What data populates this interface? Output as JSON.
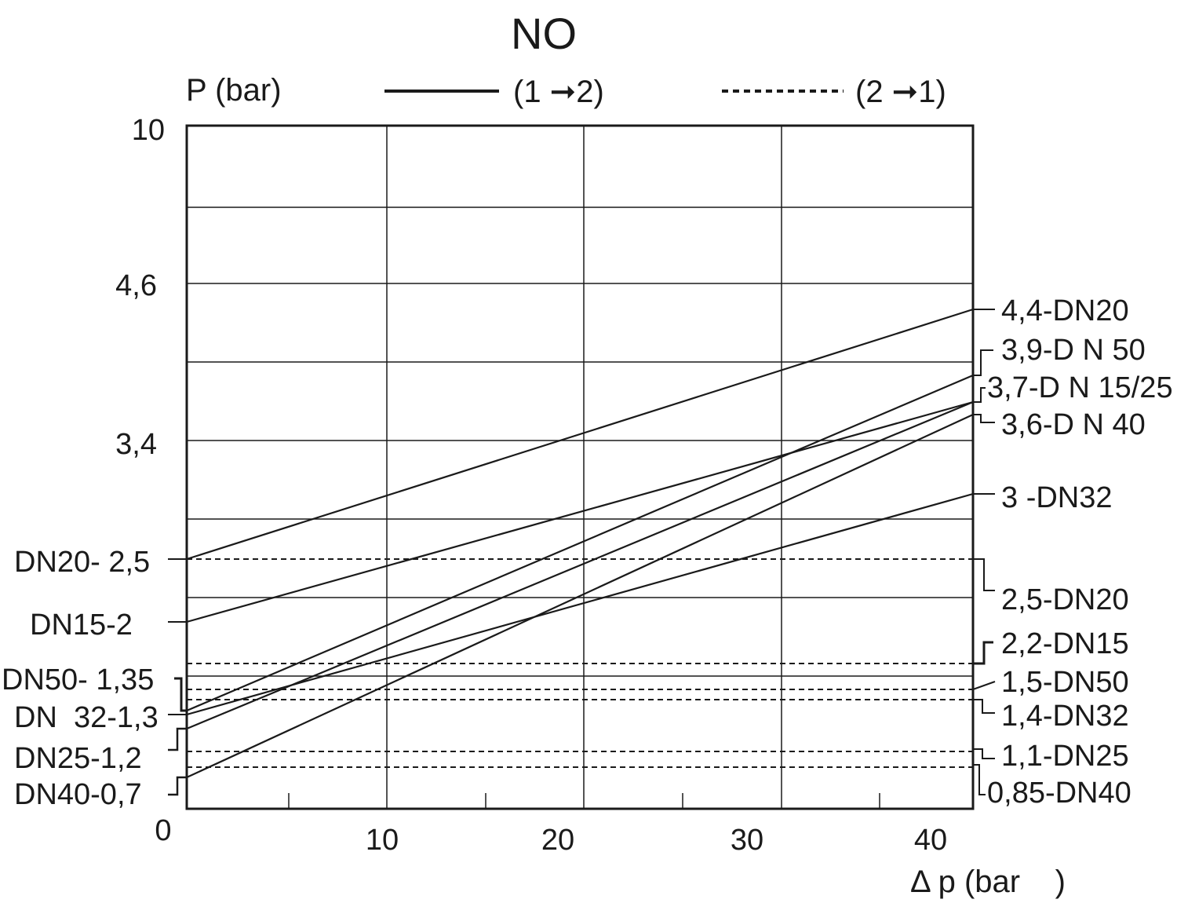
{
  "chart_data": {
    "type": "line",
    "title": "NO",
    "ylabel": "P (bar)",
    "xlabel": "Δ p (bar    )",
    "xlim": [
      0,
      42
    ],
    "x_ticks": [
      {
        "value": 0,
        "label": "0"
      },
      {
        "value": 10,
        "label": "10"
      },
      {
        "value": 20,
        "label": "20"
      },
      {
        "value": 30,
        "label": "30"
      },
      {
        "value": 40,
        "label": "40"
      }
    ],
    "y_ticks": [
      {
        "label": "10"
      },
      {
        "label": "4,6"
      },
      {
        "label": "3,4"
      }
    ],
    "legend": [
      {
        "label": "(1 ➞2)",
        "style": "solid"
      },
      {
        "label": "(2 ➞1)",
        "style": "dashed"
      }
    ],
    "grid": true,
    "series": [
      {
        "name": "DN20",
        "style": "solid",
        "x": [
          0,
          40
        ],
        "y": [
          2.5,
          4.4
        ]
      },
      {
        "name": "DN50",
        "style": "solid",
        "x": [
          0,
          40
        ],
        "y": [
          1.35,
          3.9
        ]
      },
      {
        "name": "DN15",
        "style": "solid",
        "x": [
          0,
          40
        ],
        "y": [
          2.0,
          3.7
        ]
      },
      {
        "name": "DN25",
        "style": "solid",
        "x": [
          0,
          40
        ],
        "y": [
          1.2,
          3.7
        ]
      },
      {
        "name": "DN40",
        "style": "solid",
        "x": [
          0,
          40
        ],
        "y": [
          0.7,
          3.6
        ]
      },
      {
        "name": "DN32",
        "style": "solid",
        "x": [
          0,
          40
        ],
        "y": [
          1.3,
          3.0
        ]
      },
      {
        "name": "DN20",
        "style": "dashed",
        "x": [
          0,
          40
        ],
        "y": [
          2.5,
          2.5
        ]
      },
      {
        "name": "DN15",
        "style": "dashed",
        "x": [
          0,
          40
        ],
        "y": [
          2.2,
          2.2
        ]
      },
      {
        "name": "DN50",
        "style": "dashed",
        "x": [
          0,
          40
        ],
        "y": [
          1.5,
          1.5
        ]
      },
      {
        "name": "DN32",
        "style": "dashed",
        "x": [
          0,
          40
        ],
        "y": [
          1.4,
          1.4
        ]
      },
      {
        "name": "DN25",
        "style": "dashed",
        "x": [
          0,
          40
        ],
        "y": [
          1.1,
          1.1
        ]
      },
      {
        "name": "DN40",
        "style": "dashed",
        "x": [
          0,
          40
        ],
        "y": [
          0.85,
          0.85
        ]
      }
    ],
    "left_labels": [
      "DN20- 2,5",
      "DN15-2",
      "DN50- 1,35",
      "DN  32-1,3",
      "DN25-1,2",
      "DN40-0,7"
    ],
    "right_labels": [
      "4,4-DN20",
      "3,9-D N 50",
      "3,7-D N 15/25",
      "3,6-D N 40",
      "3 -DN32",
      "2,5-DN20",
      "2,2-DN15",
      "1,5-DN50",
      "1,4-DN32",
      "1,1-DN25",
      "0,85-DN40"
    ]
  }
}
